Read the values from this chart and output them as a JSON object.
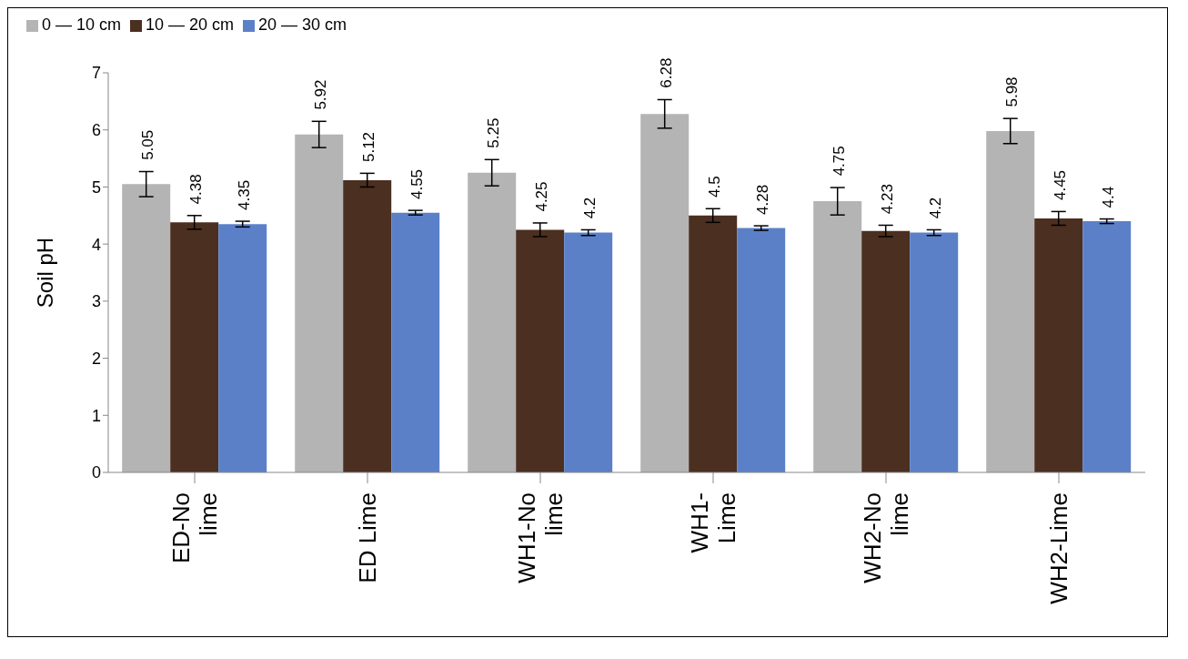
{
  "chart_data": {
    "type": "bar",
    "ylabel": "Soil pH",
    "categories": [
      "ED-No lime",
      "ED Lime",
      "WH1-No lime",
      "WH1- Lime",
      "WH2-No lime",
      "WH2-Lime"
    ],
    "series": [
      {
        "name": "0 — 10 cm",
        "color": "#b4b4b4",
        "values": [
          5.05,
          5.92,
          5.25,
          6.28,
          4.75,
          5.98
        ],
        "errors": [
          0.22,
          0.23,
          0.23,
          0.25,
          0.24,
          0.22
        ]
      },
      {
        "name": "10 — 20 cm",
        "color": "#4b2f20",
        "values": [
          4.38,
          5.12,
          4.25,
          4.5,
          4.23,
          4.45
        ],
        "errors": [
          0.12,
          0.12,
          0.12,
          0.12,
          0.1,
          0.12
        ]
      },
      {
        "name": "20 — 30 cm",
        "color": "#5b80c8",
        "values": [
          4.35,
          4.55,
          4.2,
          4.28,
          4.2,
          4.4
        ],
        "errors": [
          0.05,
          0.04,
          0.05,
          0.04,
          0.05,
          0.04
        ]
      }
    ],
    "ylim": [
      0,
      7
    ],
    "yticks": [
      0,
      1,
      2,
      3,
      4,
      5,
      6,
      7
    ],
    "legend": "top left",
    "data_labels": true
  }
}
